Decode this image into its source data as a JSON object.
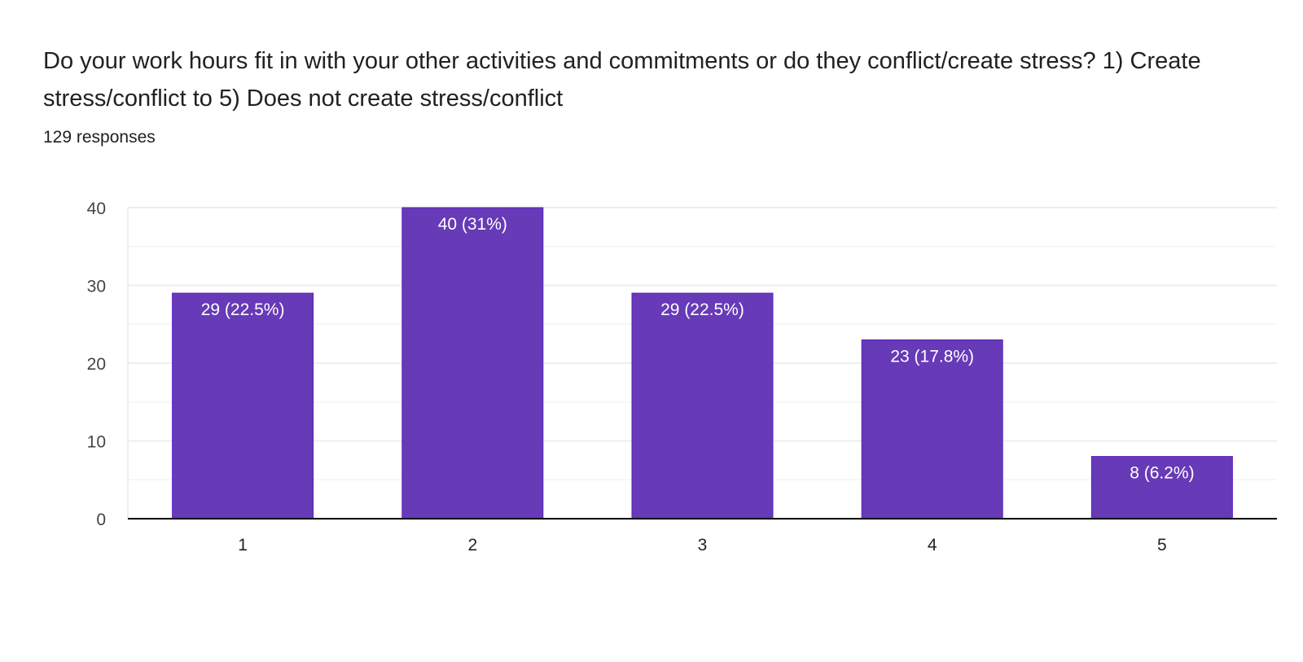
{
  "header": {
    "title": "Do your work hours fit in with your other activities and commitments or do they conflict/create stress? 1) Create stress/conflict to 5) Does not create stress/conflict",
    "responses": "129 responses"
  },
  "chart_data": {
    "type": "bar",
    "title": "Do your work hours fit in with your other activities and commitments or do they conflict/create stress? 1) Create stress/conflict to 5) Does not create stress/conflict",
    "categories": [
      "1",
      "2",
      "3",
      "4",
      "5"
    ],
    "values": [
      29,
      40,
      29,
      23,
      8
    ],
    "labels": [
      "29 (22.5%)",
      "40 (31%)",
      "29 (22.5%)",
      "23 (17.8%)",
      "8 (6.2%)"
    ],
    "yticks": [
      0,
      10,
      20,
      30,
      40
    ],
    "ylim": [
      0,
      40
    ],
    "xlabel": "",
    "ylabel": "",
    "grid": true,
    "colors": {
      "bar": "#673ab7",
      "bar_border": "#5b1fbf",
      "grid": "#eeeeee",
      "axis": "#000000"
    }
  }
}
